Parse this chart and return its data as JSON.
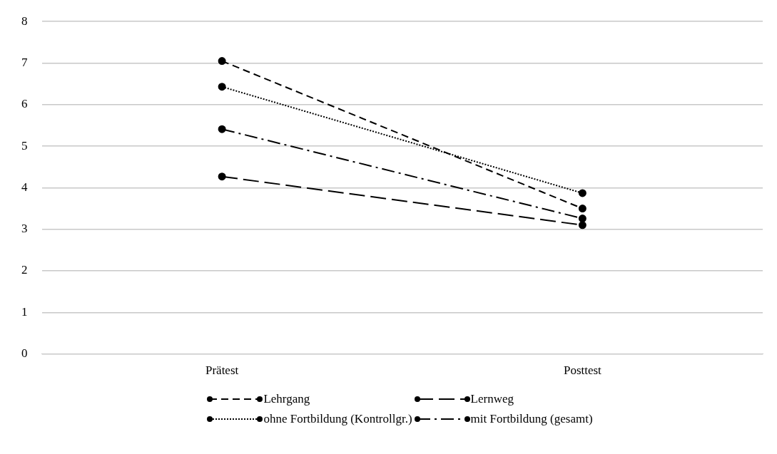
{
  "chart_data": {
    "type": "line",
    "categories": [
      "Prätest",
      "Posttest"
    ],
    "series": [
      {
        "name": "Lehrgang",
        "color": "#000000",
        "values": [
          7.05,
          3.5
        ],
        "line_style": "dashed"
      },
      {
        "name": "Lernweg",
        "color": "#000000",
        "values": [
          4.27,
          3.1
        ],
        "line_style": "longdashed"
      },
      {
        "name": "ohne Fortbildung (Kontrollgr.)",
        "color": "#000000",
        "values": [
          6.43,
          3.87
        ],
        "line_style": "dotted"
      },
      {
        "name": "mit Fortbildung (gesamt)",
        "color": "#000000",
        "values": [
          5.41,
          3.26
        ],
        "line_style": "dashdot"
      }
    ],
    "ylim": [
      0,
      8
    ],
    "yticks": [
      0,
      1,
      2,
      3,
      4,
      5,
      6,
      7,
      8
    ],
    "grid": "y",
    "legend": "bottom",
    "marker": "circle"
  }
}
